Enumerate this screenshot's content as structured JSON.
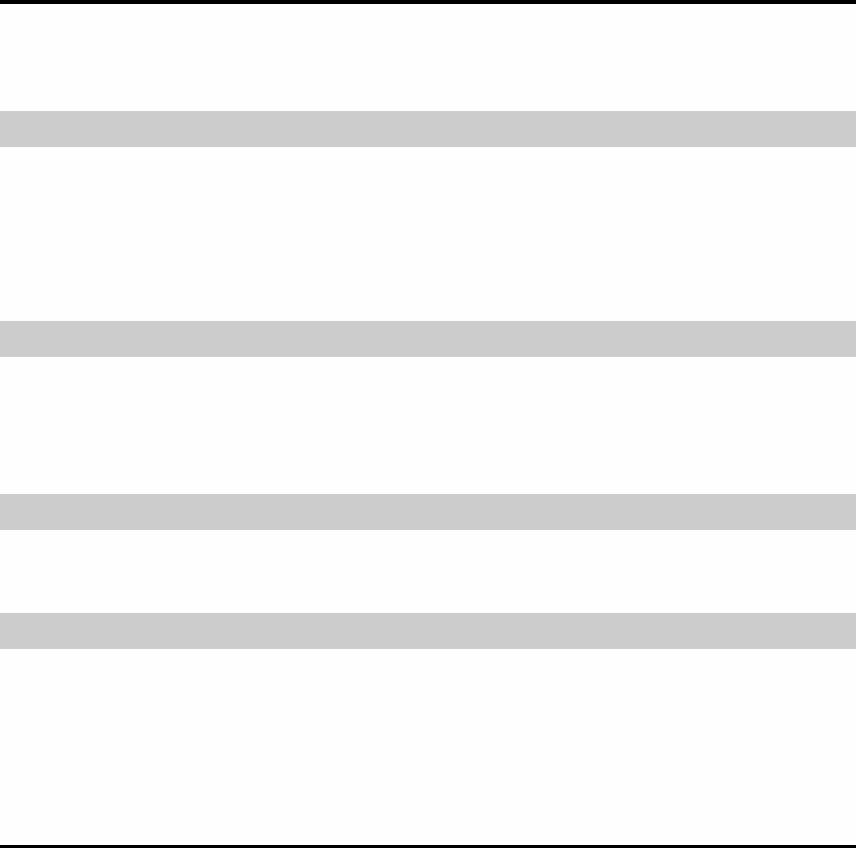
{
  "colors": {
    "background": "#fefefe",
    "rule": "#000000",
    "band": "#cccccc"
  }
}
